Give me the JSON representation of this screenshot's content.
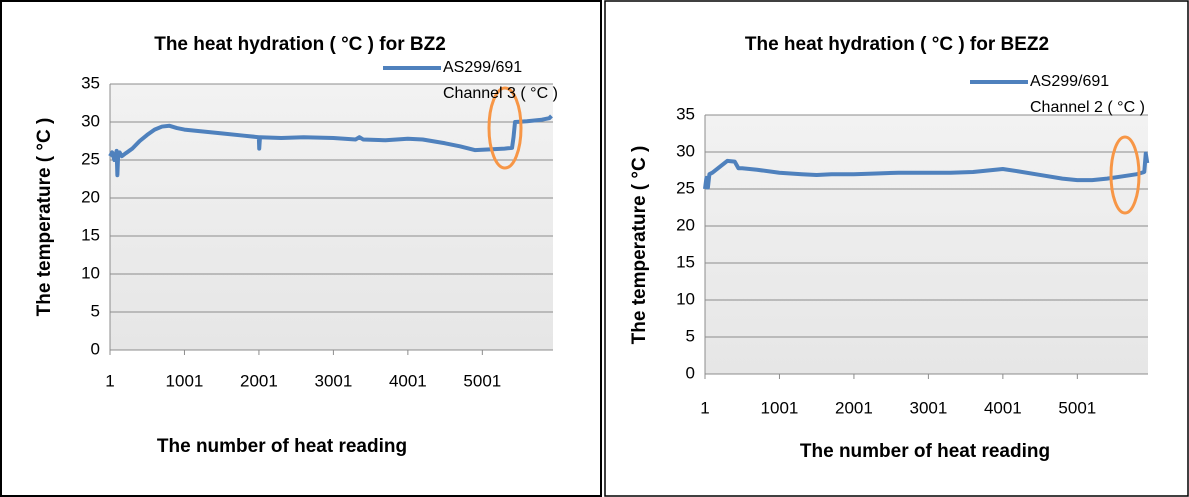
{
  "chart_data": [
    {
      "type": "line",
      "title": "The heat hydration ( °C ) for BZ2",
      "x_label": "The number of heat reading",
      "y_label": "The temperature ( °C )",
      "xlim": [
        1,
        5950
      ],
      "xticks": [
        1,
        1001,
        2001,
        3001,
        4001,
        5001
      ],
      "ylim": [
        0,
        35
      ],
      "yticks": [
        0,
        5,
        10,
        15,
        20,
        25,
        30,
        35
      ],
      "grid": true,
      "series": [
        {
          "name": "AS299/691 Channel 3 ( °C )",
          "color": "#4f81bd",
          "x": [
            1,
            30,
            60,
            90,
            100,
            110,
            130,
            160,
            200,
            300,
            400,
            500,
            600,
            700,
            800,
            900,
            1000,
            1200,
            1500,
            1800,
            2000,
            2005,
            2015,
            2300,
            2600,
            3000,
            3300,
            3350,
            3400,
            3700,
            4000,
            4200,
            4500,
            4700,
            4900,
            5100,
            5300,
            5400,
            5420,
            5440,
            5600,
            5800,
            5900,
            5930
          ],
          "values": [
            25.5,
            26,
            25,
            26.2,
            23,
            25.5,
            26,
            25.5,
            25.8,
            26.5,
            27.5,
            28.3,
            29,
            29.4,
            29.5,
            29.2,
            29,
            28.8,
            28.5,
            28.2,
            28,
            26.5,
            28,
            27.9,
            28,
            27.9,
            27.7,
            28,
            27.7,
            27.6,
            27.8,
            27.7,
            27.2,
            26.8,
            26.3,
            26.4,
            26.5,
            26.6,
            28,
            30,
            30.1,
            30.3,
            30.5,
            30.8
          ]
        }
      ]
    },
    {
      "type": "line",
      "title": "The heat hydration ( °C ) for BEZ2",
      "x_label": "The number of heat reading",
      "y_label": "The temperature ( °C )",
      "xlim": [
        1,
        5950
      ],
      "xticks": [
        1,
        1001,
        2001,
        3001,
        4001,
        5001
      ],
      "ylim": [
        0,
        35
      ],
      "yticks": [
        0,
        5,
        10,
        15,
        20,
        25,
        30,
        35
      ],
      "grid": true,
      "series": [
        {
          "name": "AS299/691 Channel 2 ( °C )",
          "color": "#4f81bd",
          "x": [
            1,
            20,
            40,
            60,
            100,
            200,
            300,
            400,
            450,
            500,
            700,
            1000,
            1300,
            1500,
            1700,
            2000,
            2300,
            2600,
            3000,
            3300,
            3600,
            3800,
            4000,
            4200,
            4500,
            4800,
            5000,
            5200,
            5400,
            5600,
            5800,
            5900,
            5920,
            5940
          ],
          "values": [
            25,
            26.5,
            25.2,
            27,
            27.2,
            28,
            28.8,
            28.7,
            27.8,
            27.8,
            27.6,
            27.2,
            27,
            26.9,
            27,
            27,
            27.1,
            27.2,
            27.2,
            27.2,
            27.3,
            27.5,
            27.7,
            27.4,
            26.9,
            26.4,
            26.2,
            26.2,
            26.4,
            26.7,
            27,
            27.3,
            29.8,
            28.5
          ]
        }
      ]
    }
  ]
}
